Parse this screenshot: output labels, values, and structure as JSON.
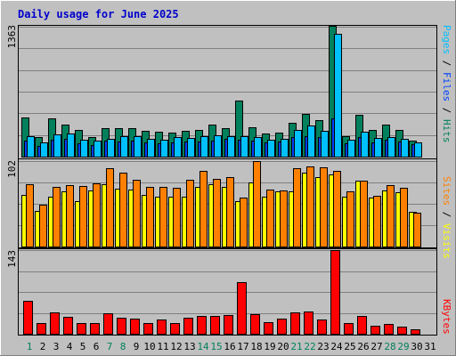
{
  "title": "Daily usage for June 2025",
  "colors": {
    "background": "#c0c0c0",
    "plot_border": "#000000",
    "title": "#0000cc",
    "grid": "#808080",
    "hits": "#00805c",
    "files": "#0040ff",
    "pages": "#00c0ff",
    "visits": "#ffff00",
    "sites": "#ff8000",
    "kbytes": "#ff0000",
    "day_normal": "#000000",
    "day_weekend": "#00805c",
    "separator": "#000000"
  },
  "chart_data": [
    {
      "type": "bar",
      "name": "hits-files-pages",
      "ymax_label": "1363",
      "ylim": [
        0,
        1363
      ],
      "categories": [
        "1",
        "2",
        "3",
        "4",
        "5",
        "6",
        "7",
        "8",
        "9",
        "10",
        "11",
        "12",
        "13",
        "14",
        "15",
        "16",
        "17",
        "18",
        "19",
        "20",
        "21",
        "22",
        "23",
        "24",
        "25",
        "26",
        "27",
        "28",
        "29",
        "30",
        "31"
      ],
      "legend": [
        {
          "text": "Pages",
          "color": "#00c0ff"
        },
        {
          "text": " / ",
          "color": "#000000"
        },
        {
          "text": "Files",
          "color": "#0040ff"
        },
        {
          "text": " / ",
          "color": "#000000"
        },
        {
          "text": "Hits",
          "color": "#00805c"
        }
      ],
      "series": [
        {
          "name": "Hits",
          "values": [
            411,
            205,
            399,
            331,
            274,
            208,
            301,
            297,
            301,
            270,
            259,
            251,
            268,
            274,
            332,
            301,
            585,
            303,
            242,
            250,
            348,
            448,
            378,
            1363,
            211,
            434,
            280,
            333,
            280,
            170,
            0
          ]
        },
        {
          "name": "Files",
          "values": [
            171,
            112,
            177,
            185,
            138,
            119,
            164,
            160,
            167,
            145,
            140,
            152,
            154,
            157,
            167,
            182,
            180,
            163,
            147,
            160,
            207,
            211,
            201,
            400,
            142,
            205,
            149,
            177,
            154,
            132,
            0
          ]
        },
        {
          "name": "Pages",
          "values": [
            216,
            151,
            233,
            244,
            178,
            168,
            185,
            217,
            211,
            181,
            176,
            200,
            196,
            214,
            224,
            214,
            209,
            200,
            180,
            182,
            280,
            320,
            268,
            1283,
            174,
            263,
            195,
            200,
            183,
            145,
            0
          ]
        }
      ]
    },
    {
      "type": "bar",
      "name": "visits-sites",
      "ymax_label": "102",
      "ylim": [
        0,
        102
      ],
      "categories": [
        "1",
        "2",
        "3",
        "4",
        "5",
        "6",
        "7",
        "8",
        "9",
        "10",
        "11",
        "12",
        "13",
        "14",
        "15",
        "16",
        "17",
        "18",
        "19",
        "20",
        "21",
        "22",
        "23",
        "24",
        "25",
        "26",
        "27",
        "28",
        "29",
        "30",
        "31"
      ],
      "legend": [
        {
          "text": "Sites",
          "color": "#ff8000"
        },
        {
          "text": " / ",
          "color": "#000000"
        },
        {
          "text": "Visits",
          "color": "#ffff00"
        }
      ],
      "series": [
        {
          "name": "Visits",
          "values": [
            62,
            42,
            60,
            66,
            54,
            67,
            74,
            69,
            68,
            62,
            60,
            60,
            59,
            71,
            74,
            71,
            54,
            77,
            60,
            66,
            66,
            88,
            83,
            86,
            59,
            79,
            58,
            67,
            65,
            41,
            0
          ]
        },
        {
          "name": "Sites",
          "values": [
            74,
            50,
            71,
            73,
            72,
            75,
            93,
            88,
            80,
            71,
            71,
            70,
            80,
            90,
            81,
            83,
            58,
            102,
            68,
            67,
            94,
            96,
            95,
            90,
            66,
            79,
            61,
            73,
            70,
            40,
            0
          ]
        }
      ]
    },
    {
      "type": "bar",
      "name": "kbytes",
      "ymax_label": "143",
      "ylim": [
        0,
        143
      ],
      "categories": [
        "1",
        "2",
        "3",
        "4",
        "5",
        "6",
        "7",
        "8",
        "9",
        "10",
        "11",
        "12",
        "13",
        "14",
        "15",
        "16",
        "17",
        "18",
        "19",
        "20",
        "21",
        "22",
        "23",
        "24",
        "25",
        "26",
        "27",
        "28",
        "29",
        "30",
        "31"
      ],
      "legend": [
        {
          "text": "KBytes",
          "color": "#ff0000"
        }
      ],
      "series": [
        {
          "name": "KBytes",
          "values": [
            57,
            19,
            37,
            29,
            19,
            19,
            35,
            27,
            26,
            18,
            24,
            18,
            27,
            31,
            30,
            32,
            88,
            34,
            20,
            26,
            37,
            38,
            24,
            143,
            18,
            30,
            14,
            17,
            12,
            8,
            0
          ]
        }
      ]
    }
  ],
  "x_axis": {
    "labels": [
      "1",
      "2",
      "3",
      "4",
      "5",
      "6",
      "7",
      "8",
      "9",
      "10",
      "11",
      "12",
      "13",
      "14",
      "15",
      "16",
      "17",
      "18",
      "19",
      "20",
      "21",
      "22",
      "23",
      "24",
      "25",
      "26",
      "27",
      "28",
      "29",
      "30",
      "31"
    ],
    "weekend_days": [
      "1",
      "7",
      "8",
      "14",
      "15",
      "21",
      "22",
      "28",
      "29"
    ]
  }
}
